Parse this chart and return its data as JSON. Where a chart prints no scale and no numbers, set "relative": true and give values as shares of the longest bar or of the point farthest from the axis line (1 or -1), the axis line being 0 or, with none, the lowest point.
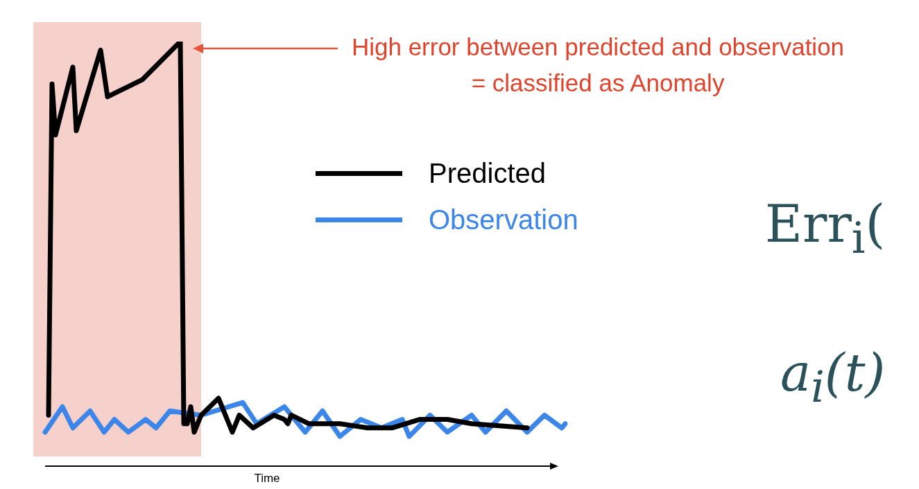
{
  "chart_data": {
    "type": "line",
    "relative": true,
    "xlabel": "Time",
    "legend": "top right",
    "marker": "none",
    "line_style": "solid",
    "categories": [
      null,
      null,
      null,
      null,
      null,
      null,
      null,
      null,
      null,
      null,
      null,
      null,
      null,
      null,
      null,
      null,
      null,
      null,
      null,
      null,
      null,
      null,
      null,
      null,
      null,
      null,
      null,
      null,
      null,
      null,
      null,
      null,
      null,
      null,
      null,
      null,
      null,
      null,
      null,
      null,
      null,
      null,
      null,
      null,
      null,
      null,
      null,
      null,
      null,
      null,
      null,
      null,
      null,
      null,
      null,
      null,
      null,
      null,
      null,
      null,
      null,
      null,
      null,
      null,
      null,
      null,
      null,
      null,
      null,
      null,
      null,
      null,
      null,
      null,
      null,
      null,
      null,
      null,
      null,
      null,
      null,
      null,
      null,
      null,
      null,
      null,
      null,
      null,
      null,
      null,
      null,
      null,
      null,
      null,
      null,
      null,
      null,
      null,
      null,
      null,
      null,
      null,
      null,
      null,
      null,
      null,
      null,
      null,
      null,
      null,
      null,
      null,
      null,
      null,
      null,
      null,
      null,
      null,
      null,
      null,
      null,
      null,
      null,
      null,
      null,
      null,
      null,
      null,
      null,
      null,
      null,
      null,
      null,
      null,
      null,
      null,
      null,
      null,
      null,
      null,
      null,
      null,
      null,
      null,
      null,
      null,
      null,
      null,
      null,
      null,
      null,
      null,
      null,
      null,
      null
    ],
    "series": [
      {
        "name": "Predicted",
        "color": "#000000",
        "values": [
          null,
          null,
          null,
          null,
          null,
          0.12,
          0.9,
          0.78,
          null,
          null,
          null,
          null,
          0.94,
          0.79,
          null,
          null,
          null,
          null,
          null,
          null,
          0.98,
          null,
          0.87,
          null,
          null,
          null,
          null,
          null,
          null,
          null,
          null,
          null,
          0.91,
          null,
          null,
          null,
          null,
          null,
          null,
          null,
          null,
          null,
          null,
          1,
          0.1,
          0.1,
          0.14,
          0.08,
          null,
          0.12,
          null,
          null,
          null,
          null,
          0.16,
          null,
          null,
          null,
          0.08,
          null,
          0.12,
          null,
          null,
          null,
          0.09,
          null,
          null,
          null,
          null,
          null,
          0.12,
          null,
          null,
          0.11,
          0.1,
          0.12,
          null,
          null,
          null,
          null,
          0.1,
          null,
          null,
          null,
          null,
          null,
          null,
          null,
          null,
          0.1,
          null,
          null,
          null,
          null,
          null,
          null,
          null,
          0.09,
          null,
          null,
          null,
          null,
          null,
          null,
          0.09,
          null,
          null,
          null,
          null,
          null,
          null,
          null,
          0.11,
          null,
          null,
          null,
          null,
          null,
          null,
          null,
          0.11,
          null,
          null,
          null,
          null,
          null,
          null,
          0.1,
          null,
          null,
          null,
          null,
          null,
          null,
          null,
          null,
          null,
          null,
          null,
          null,
          null,
          null,
          null,
          0.09,
          null,
          null,
          null,
          null,
          null,
          null,
          null,
          null,
          null,
          null,
          null
        ]
      },
      {
        "name": "Observation",
        "color": "#3b86e8",
        "values": [
          null,
          null,
          null,
          null,
          0.08,
          null,
          null,
          null,
          null,
          0.14,
          null,
          null,
          0.09,
          null,
          null,
          null,
          null,
          0.13,
          null,
          null,
          null,
          0.08,
          null,
          null,
          0.11,
          null,
          null,
          null,
          0.08,
          null,
          null,
          null,
          null,
          0.11,
          null,
          null,
          0.09,
          null,
          null,
          null,
          0.13,
          null,
          null,
          null,
          null,
          null,
          null,
          null,
          null,
          0.12,
          null,
          null,
          null,
          null,
          null,
          null,
          null,
          null,
          null,
          null,
          null,
          0.15,
          null,
          null,
          null,
          0.1,
          null,
          null,
          null,
          null,
          null,
          null,
          null,
          0.14,
          null,
          null,
          null,
          null,
          null,
          0.08,
          null,
          null,
          null,
          null,
          0.13,
          null,
          null,
          null,
          null,
          0.07,
          null,
          null,
          null,
          null,
          null,
          0.11,
          null,
          null,
          null,
          null,
          null,
          0.09,
          null,
          null,
          null,
          null,
          null,
          0.11,
          null,
          0.07,
          null,
          null,
          null,
          null,
          null,
          0.12,
          null,
          null,
          null,
          null,
          0.08,
          null,
          null,
          null,
          null,
          null,
          null,
          0.12,
          null,
          null,
          null,
          0.08,
          null,
          null,
          null,
          null,
          null,
          0.13,
          null,
          null,
          null,
          null,
          null,
          0.08,
          null,
          null,
          null,
          null,
          0.12,
          null,
          null,
          null,
          null,
          0.09,
          0.1
        ]
      }
    ],
    "annotations": [
      "High error between predicted and observation\n= classified as Anomaly",
      "Err$_{i}$(",
      "a$_{i}$(t)"
    ]
  }
}
